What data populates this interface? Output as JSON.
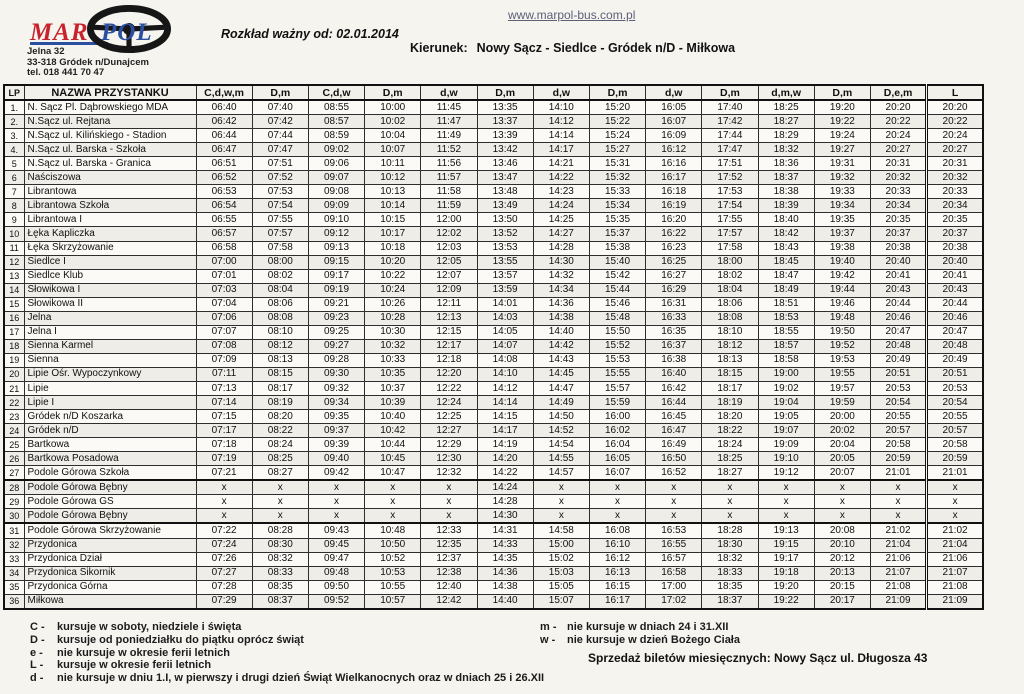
{
  "header": {
    "logo": {
      "mar": "MAR",
      "pol": "POL"
    },
    "address_lines": [
      "Jelna 32",
      "33-318  Gródek n/Dunajcem",
      "tel. 018 441 70 47"
    ],
    "valid_from": "Rozkład ważny od: 02.01.2014",
    "website": "www.marpol-bus.com.pl",
    "direction_label": "Kierunek:",
    "direction_route": "Nowy Sącz  - Siedlce - Gródek n/D - Miłkowa"
  },
  "colors": {
    "mar_red": "#c8232c",
    "pol_blue": "#2b50a1",
    "link_blue": "#5c6078"
  },
  "table": {
    "lp_header": "LP",
    "name_header": "NAZWA PRZYSTANKU",
    "time_headers": [
      "C,d,w,m",
      "D,m",
      "C,d,w",
      "D,m",
      "d,w",
      "D,m",
      "d,w",
      "D,m",
      "d,w",
      "D,m",
      "d,m,w",
      "D,m",
      "D,e,m",
      "L"
    ],
    "rows": [
      {
        "lp": "1.",
        "name": "N. Sącz Pl. Dąbrowskiego MDA",
        "times": [
          "06:40",
          "07:40",
          "08:55",
          "10:00",
          "11:45",
          "13:35",
          "14:10",
          "15:20",
          "16:05",
          "17:40",
          "18:25",
          "19:20",
          "20:20",
          "20:20"
        ]
      },
      {
        "lp": "2.",
        "name": "N.Sącz ul. Rejtana",
        "times": [
          "06:42",
          "07:42",
          "08:57",
          "10:02",
          "11:47",
          "13:37",
          "14:12",
          "15:22",
          "16:07",
          "17:42",
          "18:27",
          "19:22",
          "20:22",
          "20:22"
        ]
      },
      {
        "lp": "3.",
        "name": "N.Sącz ul. Kilińskiego - Stadion",
        "times": [
          "06:44",
          "07:44",
          "08:59",
          "10:04",
          "11:49",
          "13:39",
          "14:14",
          "15:24",
          "16:09",
          "17:44",
          "18:29",
          "19:24",
          "20:24",
          "20:24"
        ]
      },
      {
        "lp": "4.",
        "name": "N.Sącz ul. Barska - Szkoła",
        "times": [
          "06:47",
          "07:47",
          "09:02",
          "10:07",
          "11:52",
          "13:42",
          "14:17",
          "15:27",
          "16:12",
          "17:47",
          "18:32",
          "19:27",
          "20:27",
          "20:27"
        ]
      },
      {
        "lp": "5",
        "name": "N.Sącz ul. Barska - Granica",
        "times": [
          "06:51",
          "07:51",
          "09:06",
          "10:11",
          "11:56",
          "13:46",
          "14:21",
          "15:31",
          "16:16",
          "17:51",
          "18:36",
          "19:31",
          "20:31",
          "20:31"
        ]
      },
      {
        "lp": "6",
        "name": "Naściszowa",
        "times": [
          "06:52",
          "07:52",
          "09:07",
          "10:12",
          "11:57",
          "13:47",
          "14:22",
          "15:32",
          "16:17",
          "17:52",
          "18:37",
          "19:32",
          "20:32",
          "20:32"
        ]
      },
      {
        "lp": "7",
        "name": "Librantowa",
        "times": [
          "06:53",
          "07:53",
          "09:08",
          "10:13",
          "11:58",
          "13:48",
          "14:23",
          "15:33",
          "16:18",
          "17:53",
          "18:38",
          "19:33",
          "20:33",
          "20:33"
        ]
      },
      {
        "lp": "8",
        "name": "Librantowa Szkoła",
        "times": [
          "06:54",
          "07:54",
          "09:09",
          "10:14",
          "11:59",
          "13:49",
          "14:24",
          "15:34",
          "16:19",
          "17:54",
          "18:39",
          "19:34",
          "20:34",
          "20:34"
        ]
      },
      {
        "lp": "9",
        "name": "Librantowa I",
        "times": [
          "06:55",
          "07:55",
          "09:10",
          "10:15",
          "12:00",
          "13:50",
          "14:25",
          "15:35",
          "16:20",
          "17:55",
          "18:40",
          "19:35",
          "20:35",
          "20:35"
        ]
      },
      {
        "lp": "10",
        "name": "Łęka Kapliczka",
        "times": [
          "06:57",
          "07:57",
          "09:12",
          "10:17",
          "12:02",
          "13:52",
          "14:27",
          "15:37",
          "16:22",
          "17:57",
          "18:42",
          "19:37",
          "20:37",
          "20:37"
        ]
      },
      {
        "lp": "11",
        "name": "Łęka Skrzyżowanie",
        "times": [
          "06:58",
          "07:58",
          "09:13",
          "10:18",
          "12:03",
          "13:53",
          "14:28",
          "15:38",
          "16:23",
          "17:58",
          "18:43",
          "19:38",
          "20:38",
          "20:38"
        ]
      },
      {
        "lp": "12",
        "name": "Siedlce I",
        "times": [
          "07:00",
          "08:00",
          "09:15",
          "10:20",
          "12:05",
          "13:55",
          "14:30",
          "15:40",
          "16:25",
          "18:00",
          "18:45",
          "19:40",
          "20:40",
          "20:40"
        ]
      },
      {
        "lp": "13",
        "name": "Siedlce Klub",
        "times": [
          "07:01",
          "08:02",
          "09:17",
          "10:22",
          "12:07",
          "13:57",
          "14:32",
          "15:42",
          "16:27",
          "18:02",
          "18:47",
          "19:42",
          "20:41",
          "20:41"
        ]
      },
      {
        "lp": "14",
        "name": "Słowikowa I",
        "times": [
          "07:03",
          "08:04",
          "09:19",
          "10:24",
          "12:09",
          "13:59",
          "14:34",
          "15:44",
          "16:29",
          "18:04",
          "18:49",
          "19:44",
          "20:43",
          "20:43"
        ]
      },
      {
        "lp": "15",
        "name": "Słowikowa II",
        "times": [
          "07:04",
          "08:06",
          "09:21",
          "10:26",
          "12:11",
          "14:01",
          "14:36",
          "15:46",
          "16:31",
          "18:06",
          "18:51",
          "19:46",
          "20:44",
          "20:44"
        ]
      },
      {
        "lp": "16",
        "name": "Jelna",
        "times": [
          "07:06",
          "08:08",
          "09:23",
          "10:28",
          "12:13",
          "14:03",
          "14:38",
          "15:48",
          "16:33",
          "18:08",
          "18:53",
          "19:48",
          "20:46",
          "20:46"
        ]
      },
      {
        "lp": "17",
        "name": "Jelna I",
        "times": [
          "07:07",
          "08:10",
          "09:25",
          "10:30",
          "12:15",
          "14:05",
          "14:40",
          "15:50",
          "16:35",
          "18:10",
          "18:55",
          "19:50",
          "20:47",
          "20:47"
        ]
      },
      {
        "lp": "18",
        "name": "Sienna Karmel",
        "times": [
          "07:08",
          "08:12",
          "09:27",
          "10:32",
          "12:17",
          "14:07",
          "14:42",
          "15:52",
          "16:37",
          "18:12",
          "18:57",
          "19:52",
          "20:48",
          "20:48"
        ]
      },
      {
        "lp": "19",
        "name": "Sienna",
        "times": [
          "07:09",
          "08:13",
          "09:28",
          "10:33",
          "12:18",
          "14:08",
          "14:43",
          "15:53",
          "16:38",
          "18:13",
          "18:58",
          "19:53",
          "20:49",
          "20:49"
        ]
      },
      {
        "lp": "20",
        "name": "Lipie Ośr. Wypoczynkowy",
        "times": [
          "07:11",
          "08:15",
          "09:30",
          "10:35",
          "12:20",
          "14:10",
          "14:45",
          "15:55",
          "16:40",
          "18:15",
          "19:00",
          "19:55",
          "20:51",
          "20:51"
        ]
      },
      {
        "lp": "21",
        "name": "Lipie",
        "times": [
          "07:13",
          "08:17",
          "09:32",
          "10:37",
          "12:22",
          "14:12",
          "14:47",
          "15:57",
          "16:42",
          "18:17",
          "19:02",
          "19:57",
          "20:53",
          "20:53"
        ]
      },
      {
        "lp": "22",
        "name": "Lipie I",
        "times": [
          "07:14",
          "08:19",
          "09:34",
          "10:39",
          "12:24",
          "14:14",
          "14:49",
          "15:59",
          "16:44",
          "18:19",
          "19:04",
          "19:59",
          "20:54",
          "20:54"
        ]
      },
      {
        "lp": "23",
        "name": "Gródek n/D Koszarka",
        "times": [
          "07:15",
          "08:20",
          "09:35",
          "10:40",
          "12:25",
          "14:15",
          "14:50",
          "16:00",
          "16:45",
          "18:20",
          "19:05",
          "20:00",
          "20:55",
          "20:55"
        ]
      },
      {
        "lp": "24",
        "name": "Gródek n/D",
        "times": [
          "07:17",
          "08:22",
          "09:37",
          "10:42",
          "12:27",
          "14:17",
          "14:52",
          "16:02",
          "16:47",
          "18:22",
          "19:07",
          "20:02",
          "20:57",
          "20:57"
        ]
      },
      {
        "lp": "25",
        "name": "Bartkowa",
        "times": [
          "07:18",
          "08:24",
          "09:39",
          "10:44",
          "12:29",
          "14:19",
          "14:54",
          "16:04",
          "16:49",
          "18:24",
          "19:09",
          "20:04",
          "20:58",
          "20:58"
        ]
      },
      {
        "lp": "26",
        "name": "Bartkowa Posadowa",
        "times": [
          "07:19",
          "08:25",
          "09:40",
          "10:45",
          "12:30",
          "14:20",
          "14:55",
          "16:05",
          "16:50",
          "18:25",
          "19:10",
          "20:05",
          "20:59",
          "20:59"
        ]
      },
      {
        "lp": "27",
        "name": "Podole Górowa Szkoła",
        "times": [
          "07:21",
          "08:27",
          "09:42",
          "10:47",
          "12:32",
          "14:22",
          "14:57",
          "16:07",
          "16:52",
          "18:27",
          "19:12",
          "20:07",
          "21:01",
          "21:01"
        ]
      },
      {
        "lp": "28",
        "name": "Podole Górowa Bębny",
        "times": [
          "x",
          "x",
          "x",
          "x",
          "x",
          "14:24",
          "x",
          "x",
          "x",
          "x",
          "x",
          "x",
          "x",
          "x"
        ]
      },
      {
        "lp": "29",
        "name": "Podole Górowa GS",
        "times": [
          "x",
          "x",
          "x",
          "x",
          "x",
          "14:28",
          "x",
          "x",
          "x",
          "x",
          "x",
          "x",
          "x",
          "x"
        ]
      },
      {
        "lp": "30",
        "name": "Podole Górowa Bębny",
        "times": [
          "x",
          "x",
          "x",
          "x",
          "x",
          "14:30",
          "x",
          "x",
          "x",
          "x",
          "x",
          "x",
          "x",
          "x"
        ]
      },
      {
        "lp": "31",
        "name": "Podole Górowa Skrzyżowanie",
        "times": [
          "07:22",
          "08:28",
          "09:43",
          "10:48",
          "12:33",
          "14:31",
          "14:58",
          "16:08",
          "16:53",
          "18:28",
          "19:13",
          "20:08",
          "21:02",
          "21:02"
        ]
      },
      {
        "lp": "32",
        "name": "Przydonica",
        "times": [
          "07:24",
          "08:30",
          "09:45",
          "10:50",
          "12:35",
          "14:33",
          "15:00",
          "16:10",
          "16:55",
          "18:30",
          "19:15",
          "20:10",
          "21:04",
          "21:04"
        ]
      },
      {
        "lp": "33",
        "name": "Przydonica Dział",
        "times": [
          "07:26",
          "08:32",
          "09:47",
          "10:52",
          "12:37",
          "14:35",
          "15:02",
          "16:12",
          "16:57",
          "18:32",
          "19:17",
          "20:12",
          "21:06",
          "21:06"
        ]
      },
      {
        "lp": "34",
        "name": "Przydonica Sikornik",
        "times": [
          "07:27",
          "08:33",
          "09:48",
          "10:53",
          "12:38",
          "14:36",
          "15:03",
          "16:13",
          "16:58",
          "18:33",
          "19:18",
          "20:13",
          "21:07",
          "21:07"
        ]
      },
      {
        "lp": "35",
        "name": "Przydonica Górna",
        "times": [
          "07:28",
          "08:35",
          "09:50",
          "10:55",
          "12:40",
          "14:38",
          "15:05",
          "16:15",
          "17:00",
          "18:35",
          "19:20",
          "20:15",
          "21:08",
          "21:08"
        ]
      },
      {
        "lp": "36",
        "name": "Miłkowa",
        "times": [
          "07:29",
          "08:37",
          "09:52",
          "10:57",
          "12:42",
          "14:40",
          "15:07",
          "16:17",
          "17:02",
          "18:37",
          "19:22",
          "20:17",
          "21:09",
          "21:09"
        ]
      }
    ]
  },
  "legend": {
    "left": [
      {
        "symbol": "C -",
        "text": "kursuje w soboty, niedziele i święta"
      },
      {
        "symbol": "D -",
        "text": "kursuje od poniedziałku do piątku oprócz świąt"
      },
      {
        "symbol": "e -",
        "text": "nie kursuje w okresie ferii letnich"
      },
      {
        "symbol": "L -",
        "text": "kursuje w okresie ferii letnich"
      },
      {
        "symbol": "d -",
        "text": "nie kursuje w dniu 1.I,  w pierwszy i drugi dzień Świąt Wielkanocnych oraz w dniach 25 i 26.XII"
      }
    ],
    "right": [
      {
        "symbol": "m -",
        "text": "nie kursuje w dniach 24 i 31.XII"
      },
      {
        "symbol": "w -",
        "text": "nie kursuje w dzień Bożego Ciała"
      }
    ],
    "tickets": "Sprzedaż biletów miesięcznych: Nowy Sącz ul. Długosza 43"
  }
}
